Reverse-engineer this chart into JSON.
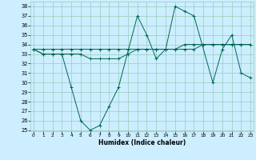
{
  "xlabel": "Humidex (Indice chaleur)",
  "background_color": "#cceeff",
  "grid_color": "#99ccbb",
  "line_color": "#006655",
  "x": [
    0,
    1,
    2,
    3,
    4,
    5,
    6,
    7,
    8,
    9,
    10,
    11,
    12,
    13,
    14,
    15,
    16,
    17,
    18,
    19,
    20,
    21,
    22,
    23
  ],
  "line1": [
    33.5,
    33.5,
    33.5,
    33.5,
    33.5,
    33.5,
    33.5,
    33.5,
    33.5,
    33.5,
    33.5,
    33.5,
    33.5,
    33.5,
    33.5,
    33.5,
    33.5,
    33.5,
    34.0,
    34.0,
    34.0,
    34.0,
    34.0,
    34.0
  ],
  "line2": [
    33.5,
    33.0,
    33.0,
    33.0,
    33.0,
    33.0,
    32.5,
    32.5,
    32.5,
    32.5,
    33.0,
    33.5,
    33.5,
    33.5,
    33.5,
    33.5,
    34.0,
    34.0,
    34.0,
    34.0,
    34.0,
    34.0,
    34.0,
    34.0
  ],
  "line3_x": [
    0,
    1,
    2,
    3,
    4,
    5,
    6,
    7,
    8,
    9,
    11,
    12,
    13,
    14,
    15,
    16,
    17,
    19,
    20,
    21,
    22,
    23
  ],
  "line3": [
    33.5,
    33.0,
    33.0,
    33.0,
    29.5,
    26.0,
    25.0,
    25.5,
    27.5,
    29.5,
    37.0,
    35.0,
    32.5,
    33.5,
    38.0,
    37.5,
    37.0,
    30.0,
    33.5,
    35.0,
    31.0,
    30.5
  ],
  "ylim": [
    25,
    38.5
  ],
  "xlim": [
    -0.3,
    23.3
  ],
  "yticks": [
    25,
    26,
    27,
    28,
    29,
    30,
    31,
    32,
    33,
    34,
    35,
    36,
    37,
    38
  ],
  "xticks": [
    0,
    1,
    2,
    3,
    4,
    5,
    6,
    7,
    8,
    9,
    10,
    11,
    12,
    13,
    14,
    15,
    16,
    17,
    18,
    19,
    20,
    21,
    22,
    23
  ]
}
